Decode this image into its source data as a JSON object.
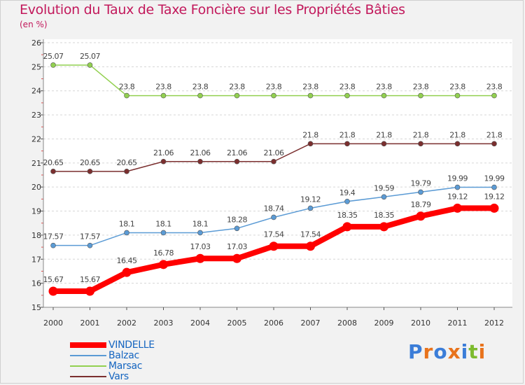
{
  "title": "Evolution du Taux de Taxe Foncière sur les Propriétés Bâties",
  "unit_label": "(en %)",
  "logo_text": "Proxiti",
  "colors": {
    "VINDELLE": "#ff0000",
    "Balzac": "#5b9bd5",
    "Marsac": "#92d050",
    "Vars": "#7b2f2f"
  },
  "chart_data": {
    "type": "line",
    "title": "Evolution du Taux de Taxe Foncière sur les Propriétés Bâties",
    "ylabel": "(en %)",
    "xlabel": "",
    "ylim": [
      15,
      26
    ],
    "y_ticks": [
      "15",
      "16",
      "17",
      "18",
      "19",
      "20",
      "21",
      "22",
      "23",
      "24",
      "25",
      "26"
    ],
    "grid": "horizontal dashed",
    "legend_position": "bottom-left",
    "x": [
      "2000",
      "2001",
      "2002",
      "2003",
      "2004",
      "2005",
      "2006",
      "2007",
      "2008",
      "2009",
      "2010",
      "2011",
      "2012"
    ],
    "series": [
      {
        "name": "Marsac",
        "values": [
          25.07,
          25.07,
          23.8,
          23.8,
          23.8,
          23.8,
          23.8,
          23.8,
          23.8,
          23.8,
          23.8,
          23.8,
          23.8
        ],
        "labels": [
          "25.07",
          "25.07",
          "23.8",
          "23.8",
          "23.8",
          "23.8",
          "23.8",
          "23.8",
          "23.8",
          "23.8",
          "23.8",
          "23.8",
          "23.8"
        ]
      },
      {
        "name": "Vars",
        "values": [
          20.65,
          20.65,
          20.65,
          21.06,
          21.06,
          21.06,
          21.06,
          21.8,
          21.8,
          21.8,
          21.8,
          21.8,
          21.8
        ],
        "labels": [
          "20.65",
          "20.65",
          "20.65",
          "21.06",
          "21.06",
          "21.06",
          "21.06",
          "21.8",
          "21.8",
          "21.8",
          "21.8",
          "21.8",
          "21.8"
        ]
      },
      {
        "name": "Balzac",
        "values": [
          17.57,
          17.57,
          18.1,
          18.1,
          18.1,
          18.28,
          18.74,
          19.12,
          19.4,
          19.59,
          19.79,
          19.99,
          19.99
        ],
        "labels": [
          "17.57",
          "17.57",
          "18.1",
          "18.1",
          "18.1",
          "18.28",
          "18.74",
          "19.12",
          "19.4",
          "19.59",
          "19.79",
          "19.99",
          "19.99"
        ]
      },
      {
        "name": "VINDELLE",
        "values": [
          15.67,
          15.67,
          16.45,
          16.78,
          17.03,
          17.03,
          17.54,
          17.54,
          18.35,
          18.35,
          18.79,
          19.12,
          19.12
        ],
        "labels": [
          "15.67",
          "15.67",
          "16.45",
          "16.78",
          "17.03",
          "17.03",
          "17.54",
          "17.54",
          "18.35",
          "18.35",
          "18.79",
          "19.12",
          "19.12"
        ]
      }
    ],
    "legend": [
      "VINDELLE",
      "Balzac",
      "Marsac",
      "Vars"
    ]
  }
}
